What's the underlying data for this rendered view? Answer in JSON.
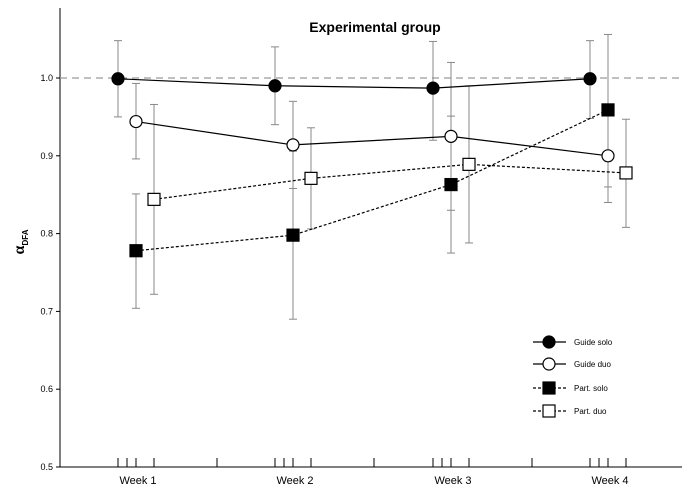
{
  "chart_data": {
    "type": "line",
    "title": "Experimental group",
    "ylabel_main": "α",
    "ylabel_sub": "DFA",
    "xlabel": "",
    "categories": [
      "Week 1",
      "Week 2",
      "Week 3",
      "Week 4"
    ],
    "ylim": [
      0.5,
      1.05
    ],
    "yticks": [
      "0.5",
      "0.6",
      "0.7",
      "0.8",
      "0.9",
      "1.0"
    ],
    "reference_line": 1.0,
    "legend_position": "bottom-right",
    "series": [
      {
        "name": "Guide solo",
        "marker": "circle",
        "fill": "#000000",
        "line": "solid",
        "values": [
          0.999,
          0.99,
          0.987,
          0.999
        ],
        "err_low": [
          0.95,
          0.94,
          0.92,
          0.948
        ],
        "err_high": [
          1.048,
          1.04,
          1.047,
          1.048
        ]
      },
      {
        "name": "Guide duo",
        "marker": "circle",
        "fill": "#ffffff",
        "line": "solid",
        "values": [
          0.944,
          0.914,
          0.925,
          0.9
        ],
        "err_low": [
          0.896,
          0.858,
          0.83,
          0.84
        ],
        "err_high": [
          0.993,
          0.97,
          1.02,
          0.962
        ]
      },
      {
        "name": "Part. solo",
        "marker": "square",
        "fill": "#000000",
        "line": "dashed",
        "values": [
          0.778,
          0.798,
          0.863,
          0.959
        ],
        "err_low": [
          0.704,
          0.69,
          0.775,
          0.86
        ],
        "err_high": [
          0.851,
          0.906,
          0.951,
          1.056
        ]
      },
      {
        "name": "Part. duo",
        "marker": "square",
        "fill": "#ffffff",
        "line": "dashed",
        "values": [
          0.844,
          0.871,
          0.889,
          0.878
        ],
        "err_low": [
          0.722,
          0.806,
          0.788,
          0.808
        ],
        "err_high": [
          0.966,
          0.936,
          0.99,
          0.947
        ]
      }
    ]
  }
}
